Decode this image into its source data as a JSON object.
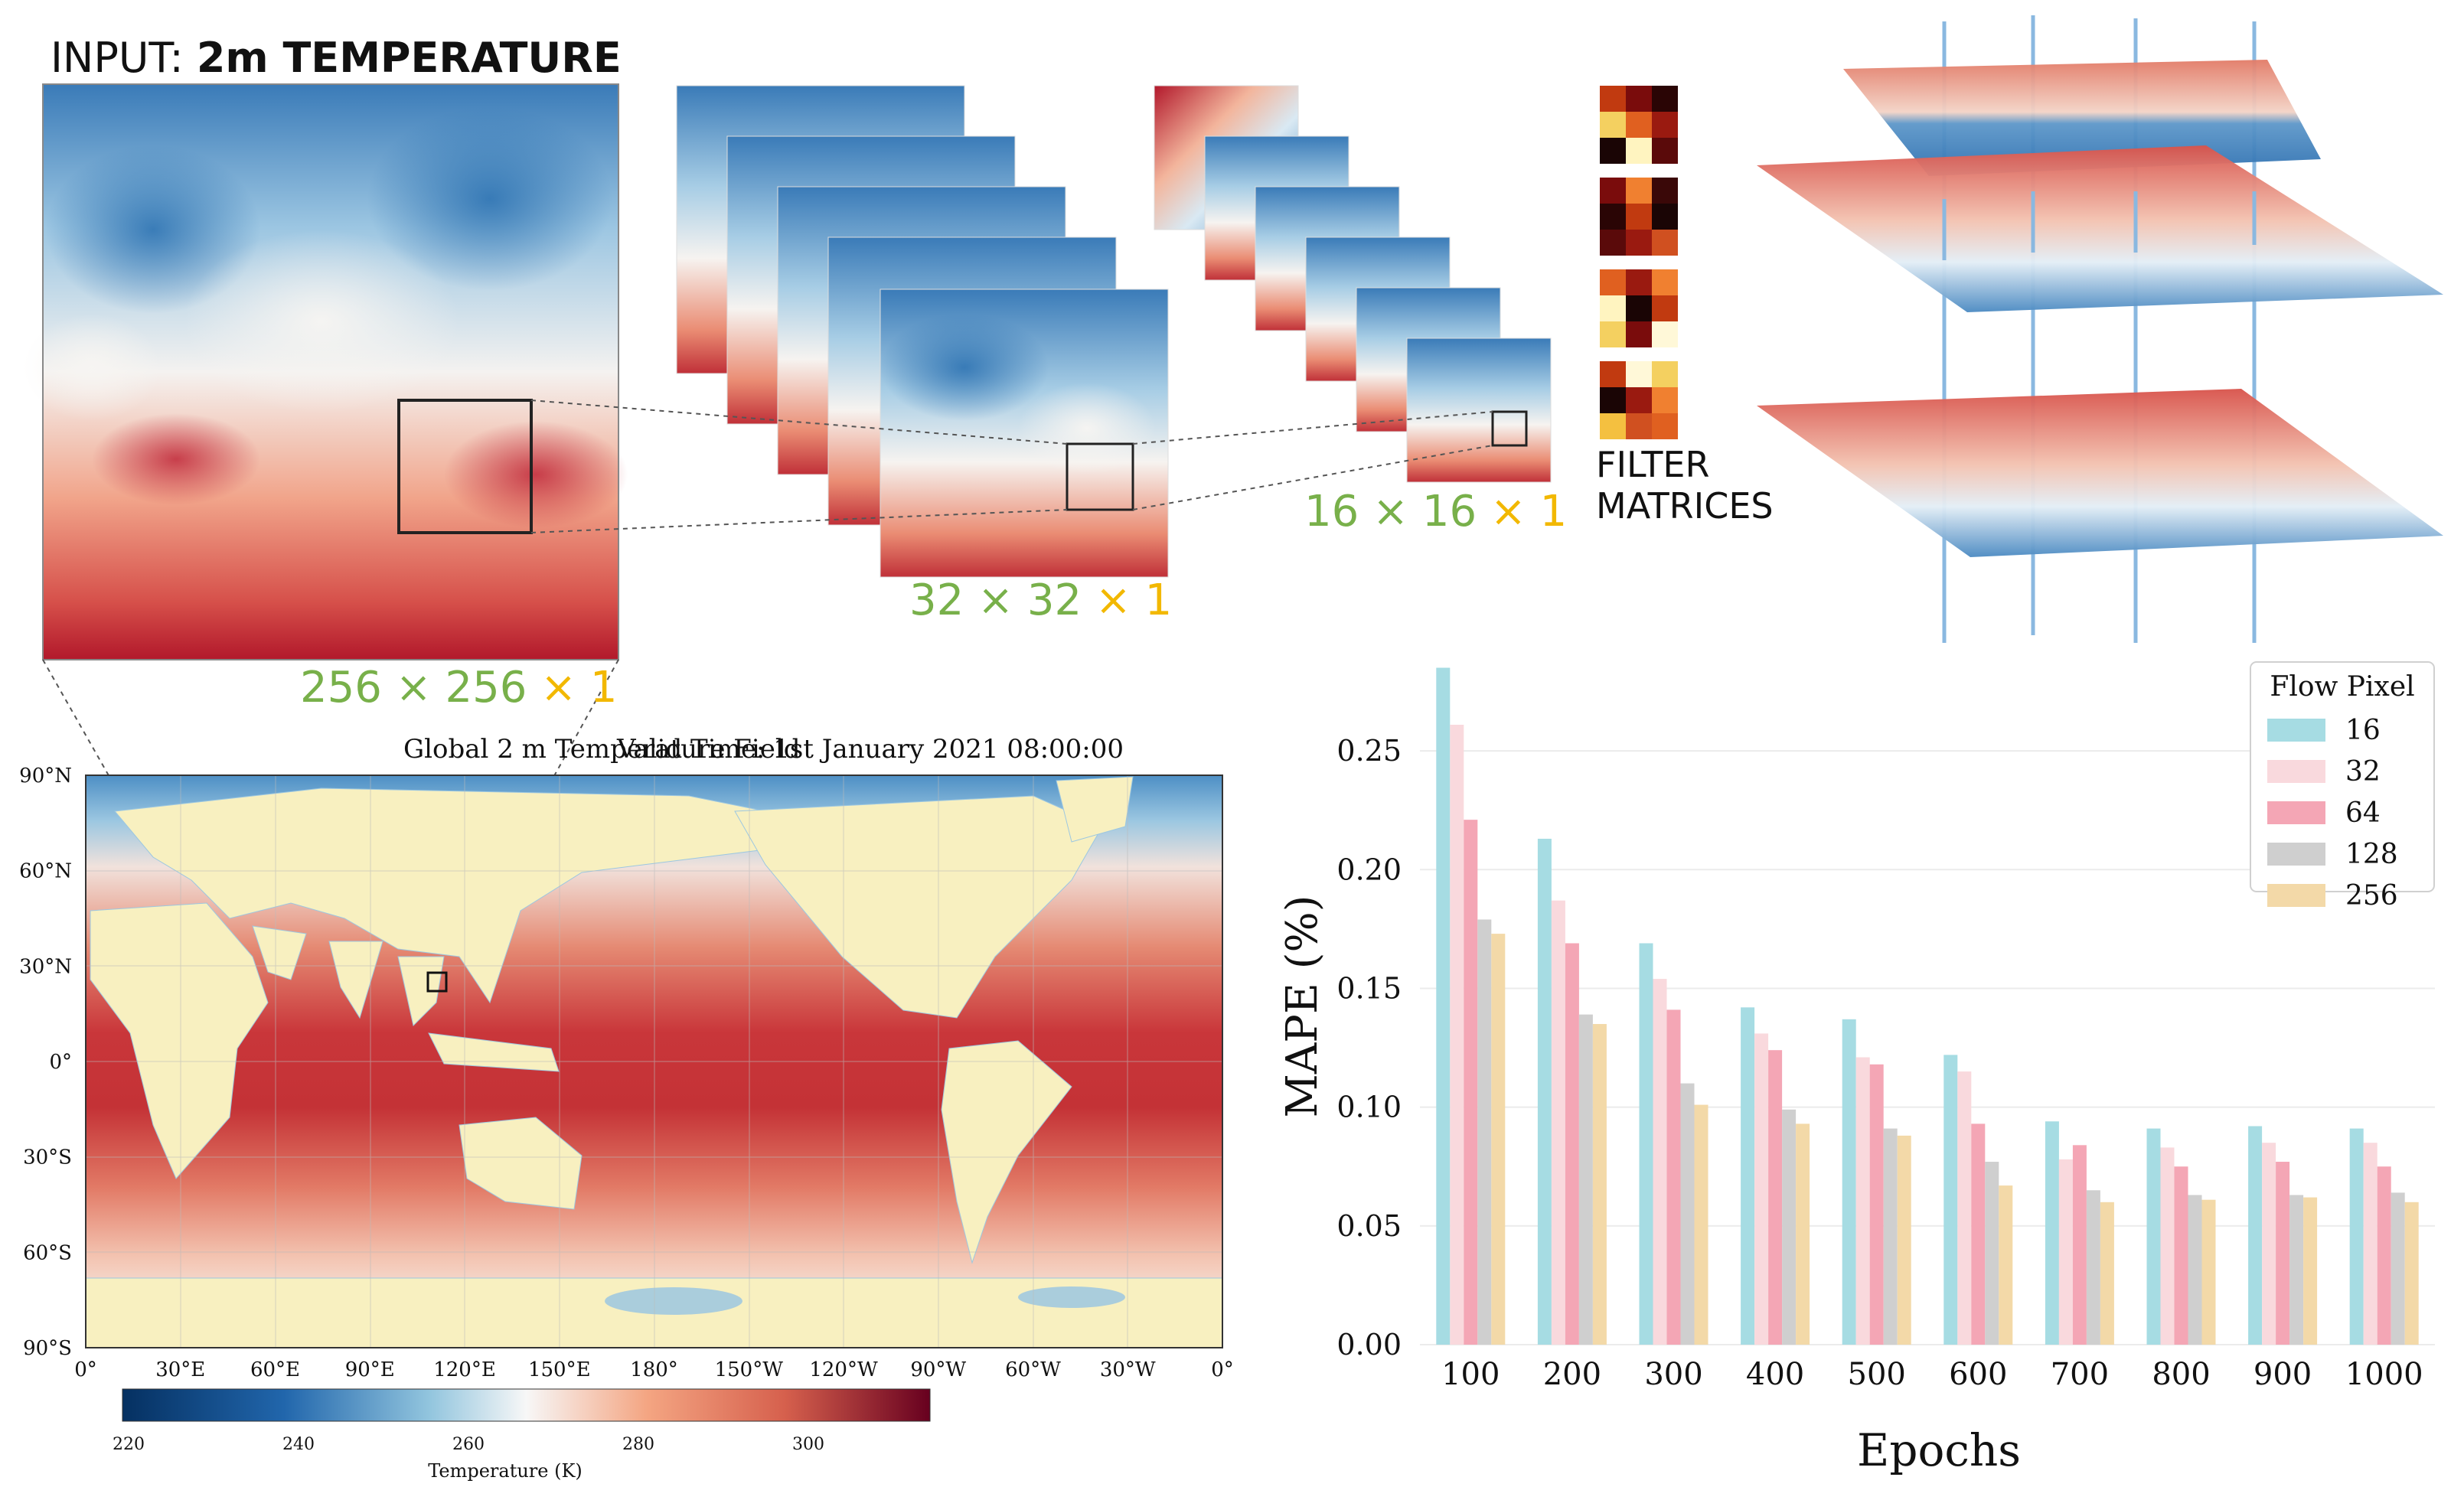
{
  "header": {
    "title_prefix": "INPUT: ",
    "title_bold": "2m TEMPERATURE"
  },
  "cnn": {
    "input_dim": {
      "a": "256",
      "b": "256",
      "c": "1"
    },
    "mid_dim": {
      "a": "32",
      "b": "32",
      "c": "1"
    },
    "small_dim": {
      "a": "16",
      "b": "16",
      "c": "1"
    },
    "times": "×",
    "filter_label_1": "FILTER",
    "filter_label_2": "MATRICES"
  },
  "map": {
    "title": "Global 2 m Temperature Field",
    "valid_time": "Valid Time: 1st January 2021 08:00:00",
    "lat_labels": [
      "90°N",
      "60°N",
      "30°N",
      "0°",
      "30°S",
      "60°S",
      "90°S"
    ],
    "lon_labels": [
      "0°",
      "30°E",
      "60°E",
      "90°E",
      "120°E",
      "150°E",
      "180°",
      "150°W",
      "120°W",
      "90°W",
      "60°W",
      "30°W",
      "0°"
    ],
    "colorbar_ticks": [
      "220",
      "240",
      "260",
      "280",
      "300"
    ],
    "colorbar_label": "Temperature (K)"
  },
  "chart_data": {
    "type": "bar",
    "xlabel": "Epochs",
    "ylabel": "MAPE (%)",
    "categories": [
      "100",
      "200",
      "300",
      "400",
      "500",
      "600",
      "700",
      "800",
      "900",
      "1000"
    ],
    "ylim": [
      0,
      0.29
    ],
    "yticks": [
      "0.00",
      "0.05",
      "0.10",
      "0.15",
      "0.20",
      "0.25"
    ],
    "legend_title": "Flow Pixel",
    "legend_position": "top-right",
    "series": [
      {
        "name": "16",
        "color": "#a6dce3",
        "values": [
          0.285,
          0.213,
          0.169,
          0.142,
          0.137,
          0.122,
          0.094,
          0.091,
          0.092,
          0.091
        ]
      },
      {
        "name": "32",
        "color": "#f9d9dd",
        "values": [
          0.261,
          0.187,
          0.154,
          0.131,
          0.121,
          0.115,
          0.078,
          0.083,
          0.085,
          0.085
        ]
      },
      {
        "name": "64",
        "color": "#f4a6b5",
        "values": [
          0.221,
          0.169,
          0.141,
          0.124,
          0.118,
          0.093,
          0.084,
          0.075,
          0.077,
          0.075
        ]
      },
      {
        "name": "128",
        "color": "#cfcfcf",
        "values": [
          0.179,
          0.139,
          0.11,
          0.099,
          0.091,
          0.077,
          0.065,
          0.063,
          0.063,
          0.064
        ]
      },
      {
        "name": "256",
        "color": "#f3d9a8",
        "values": [
          0.173,
          0.135,
          0.101,
          0.093,
          0.088,
          0.067,
          0.06,
          0.061,
          0.062,
          0.06
        ]
      }
    ]
  },
  "colors": {
    "warm": "#b2182b",
    "cool": "#2166ac",
    "land": "#f8f0c0",
    "label_green": "#78b04a",
    "label_yellow": "#f2b800"
  }
}
